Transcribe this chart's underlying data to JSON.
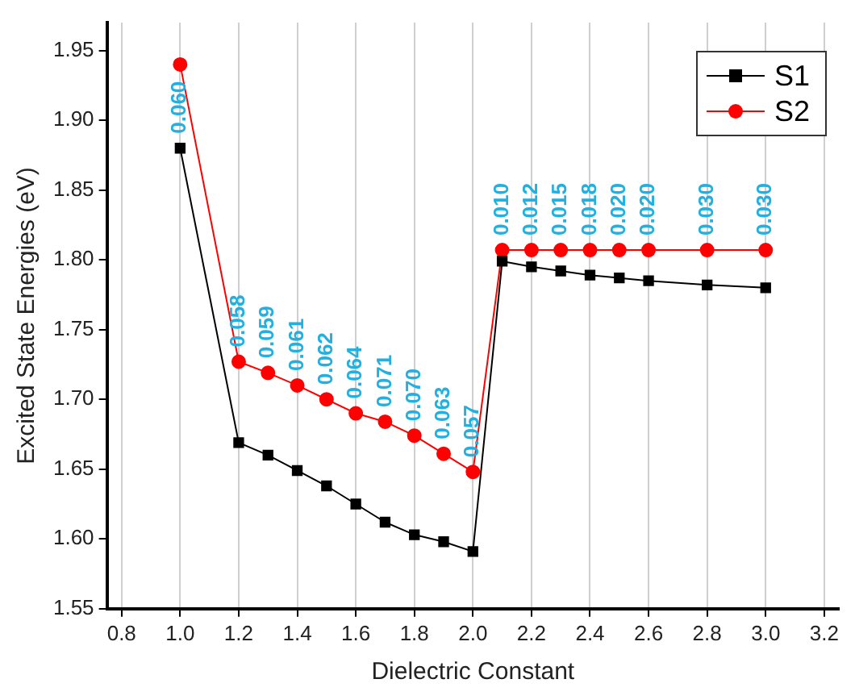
{
  "chart_data": {
    "type": "line",
    "xlabel": "Dielectric Constant",
    "ylabel": "Excited State Energies (eV)",
    "x": [
      1.0,
      1.2,
      1.3,
      1.4,
      1.5,
      1.6,
      1.7,
      1.8,
      1.9,
      2.0,
      2.1,
      2.2,
      2.3,
      2.4,
      2.5,
      2.6,
      2.8,
      3.0
    ],
    "series": [
      {
        "name": "S1",
        "color": "#000000",
        "marker": "square",
        "values": [
          1.88,
          1.669,
          1.66,
          1.649,
          1.638,
          1.625,
          1.612,
          1.603,
          1.598,
          1.591,
          1.799,
          1.795,
          1.792,
          1.789,
          1.787,
          1.785,
          1.782,
          1.78
        ]
      },
      {
        "name": "S2",
        "color": "#ff0000",
        "marker": "circle",
        "values": [
          1.94,
          1.727,
          1.719,
          1.71,
          1.7,
          1.69,
          1.684,
          1.674,
          1.661,
          1.648,
          1.807,
          1.807,
          1.807,
          1.807,
          1.807,
          1.807,
          1.807,
          1.807
        ]
      }
    ],
    "xlim": [
      0.75,
      3.25
    ],
    "xticks": [
      {
        "value": 0.8,
        "label": "0.8"
      },
      {
        "value": 1,
        "label": "1.0"
      },
      {
        "value": 1.2,
        "label": "1.2"
      },
      {
        "value": 1.4,
        "label": "1.4"
      },
      {
        "value": 1.6,
        "label": "1.6"
      },
      {
        "value": 1.8,
        "label": "1.8"
      },
      {
        "value": 2,
        "label": "2.0"
      },
      {
        "value": 2.2,
        "label": "2.2"
      },
      {
        "value": 2.4,
        "label": "2.4"
      },
      {
        "value": 2.6,
        "label": "2.6"
      },
      {
        "value": 2.8,
        "label": "2.8"
      },
      {
        "value": 3,
        "label": "3.0"
      },
      {
        "value": 3.2,
        "label": "3.2"
      }
    ],
    "ylim": [
      1.55,
      1.97
    ],
    "yticks": [
      1.55,
      {
        "value": 1.6,
        "label": "1.60"
      },
      1.65,
      {
        "value": 1.7,
        "label": "1.70"
      },
      1.75,
      {
        "value": 1.8,
        "label": "1.80"
      },
      1.85,
      {
        "value": 1.9,
        "label": "1.90"
      },
      1.95
    ],
    "grid": "x",
    "legend": "top right",
    "line_style": "solid",
    "annotations": [
      {
        "text": "0.060",
        "x": 1.0,
        "y": 1.88
      },
      {
        "text": "0.058",
        "x": 1.2,
        "y": 1.727
      },
      {
        "text": "0.059",
        "x": 1.3,
        "y": 1.719
      },
      {
        "text": "0.061",
        "x": 1.4,
        "y": 1.71
      },
      {
        "text": "0.062",
        "x": 1.5,
        "y": 1.7
      },
      {
        "text": "0.064",
        "x": 1.6,
        "y": 1.69
      },
      {
        "text": "0.071",
        "x": 1.7,
        "y": 1.684
      },
      {
        "text": "0.070",
        "x": 1.8,
        "y": 1.674
      },
      {
        "text": "0.063",
        "x": 1.9,
        "y": 1.661
      },
      {
        "text": "0.057",
        "x": 2.0,
        "y": 1.648
      },
      {
        "text": "0.010",
        "x": 2.1,
        "y": 1.807
      },
      {
        "text": "0.012",
        "x": 2.2,
        "y": 1.807
      },
      {
        "text": "0.015",
        "x": 2.3,
        "y": 1.807
      },
      {
        "text": "0.018",
        "x": 2.4,
        "y": 1.807
      },
      {
        "text": "0.020",
        "x": 2.5,
        "y": 1.807
      },
      {
        "text": "0.020",
        "x": 2.6,
        "y": 1.807
      },
      {
        "text": "0.030",
        "x": 2.8,
        "y": 1.807
      },
      {
        "text": "0.030",
        "x": 3.0,
        "y": 1.807
      }
    ]
  }
}
